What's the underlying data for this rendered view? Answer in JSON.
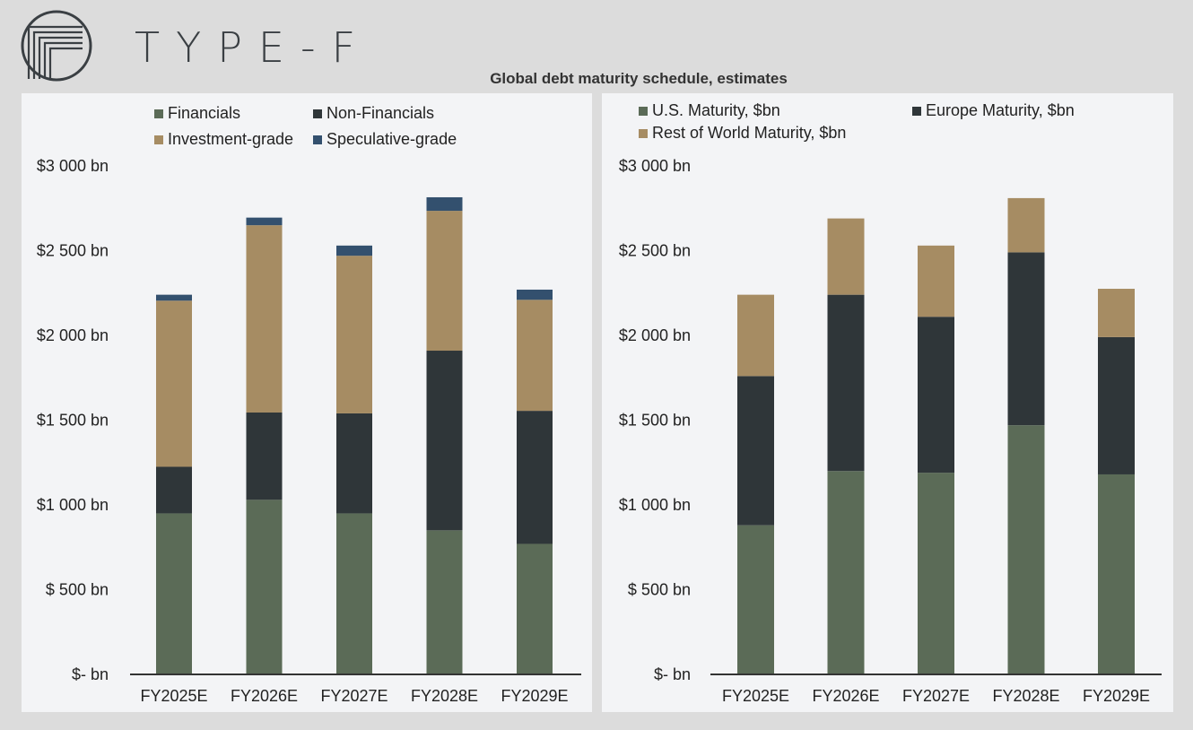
{
  "brand": {
    "name": "TYPE-F"
  },
  "title": "Global debt maturity schedule, estimates",
  "colors": {
    "green": "#5b6b57",
    "dark": "#2f3639",
    "tan": "#a68c63",
    "blue": "#33506e"
  },
  "chart_data": [
    {
      "type": "bar",
      "stacked": true,
      "categories": [
        "FY2025E",
        "FY2026E",
        "FY2027E",
        "FY2028E",
        "FY2029E"
      ],
      "ylim": [
        0,
        3000
      ],
      "yticks": [
        0,
        500,
        1000,
        1500,
        2000,
        2500,
        3000
      ],
      "ytick_labels": [
        "$- bn",
        "$ 500 bn",
        "$1 000 bn",
        "$1 500 bn",
        "$2 000 bn",
        "$2 500 bn",
        "$3 000 bn"
      ],
      "legend_position": "top",
      "series": [
        {
          "name": "Financials",
          "color": "#5b6b57",
          "values": [
            950,
            1030,
            950,
            850,
            770
          ]
        },
        {
          "name": "Non-Financials",
          "color": "#2f3639",
          "values": [
            275,
            515,
            590,
            1060,
            785
          ]
        },
        {
          "name": "Investment-grade",
          "color": "#a68c63",
          "values": [
            980,
            1105,
            930,
            825,
            655
          ]
        },
        {
          "name": "Speculative-grade",
          "color": "#33506e",
          "values": [
            35,
            45,
            60,
            80,
            60
          ]
        }
      ]
    },
    {
      "type": "bar",
      "stacked": true,
      "categories": [
        "FY2025E",
        "FY2026E",
        "FY2027E",
        "FY2028E",
        "FY2029E"
      ],
      "ylim": [
        0,
        3000
      ],
      "yticks": [
        0,
        500,
        1000,
        1500,
        2000,
        2500,
        3000
      ],
      "ytick_labels": [
        "$- bn",
        "$ 500 bn",
        "$1 000 bn",
        "$1 500 bn",
        "$2 000 bn",
        "$2 500 bn",
        "$3 000 bn"
      ],
      "legend_position": "top",
      "series": [
        {
          "name": "U.S. Maturity, $bn",
          "color": "#5b6b57",
          "values": [
            880,
            1200,
            1190,
            1470,
            1180
          ]
        },
        {
          "name": "Europe Maturity, $bn",
          "color": "#2f3639",
          "values": [
            880,
            1040,
            920,
            1020,
            810
          ]
        },
        {
          "name": "Rest of World Maturity, $bn",
          "color": "#a68c63",
          "values": [
            480,
            450,
            420,
            320,
            285
          ]
        }
      ]
    }
  ]
}
